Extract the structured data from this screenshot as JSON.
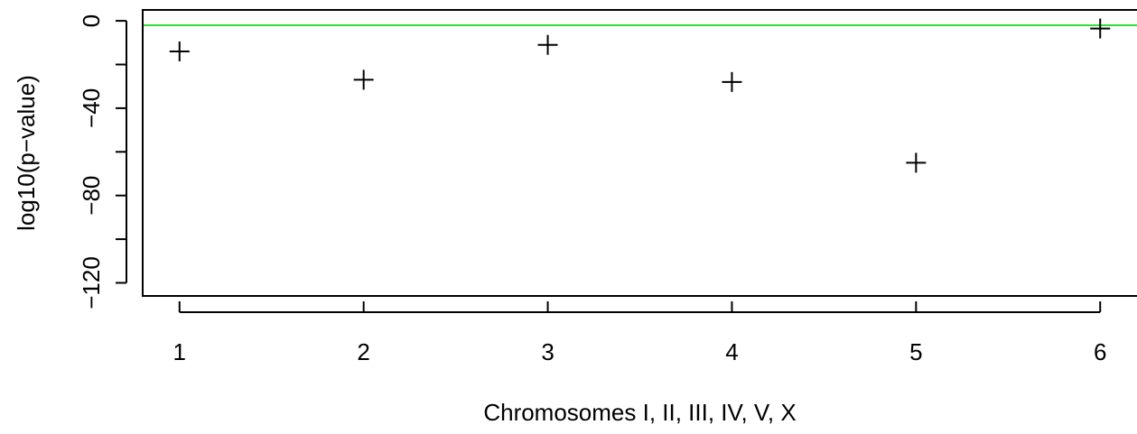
{
  "chart_data": {
    "type": "scatter",
    "title": "",
    "xlabel": "Chromosomes I, II, III, IV, V, X",
    "ylabel": "log10(p−value)",
    "x": [
      1,
      2,
      3,
      4,
      5,
      6
    ],
    "y": [
      -14,
      -27,
      -11,
      -28,
      -65,
      -3.5
    ],
    "xlim": [
      0.8,
      6.2
    ],
    "ylim": [
      -126,
      5
    ],
    "xticks": [
      1,
      2,
      3,
      4,
      5,
      6
    ],
    "xtick_labels": [
      "1",
      "2",
      "3",
      "4",
      "5",
      "6"
    ],
    "yticks": [
      0,
      -20,
      -40,
      -60,
      -80,
      -100,
      -120
    ],
    "ytick_labels": [
      "0",
      "",
      "−40",
      "",
      "−80",
      "",
      "−120"
    ],
    "marker": "+",
    "marker_color": "#000000",
    "reference_line": {
      "y": -2,
      "color": "#33dd33"
    },
    "grid": false,
    "legend": "none"
  }
}
